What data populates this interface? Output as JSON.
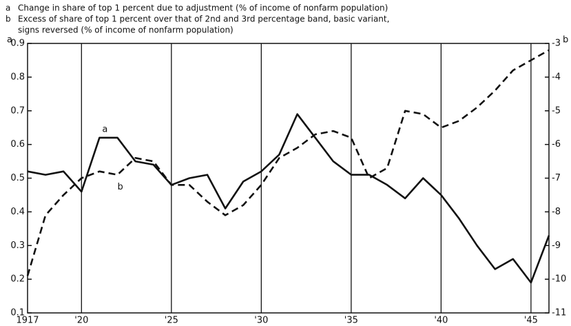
{
  "chart_data": {
    "type": "line",
    "series": [
      {
        "name": "a",
        "description": [
          "Change in share of top 1 percent due to adjustment (% of income of nonfarm population)"
        ],
        "color": "#111111",
        "dash": false,
        "values": [
          0.52,
          0.51,
          0.52,
          0.46,
          0.62,
          0.62,
          0.55,
          0.54,
          0.48,
          0.5,
          0.51,
          0.41,
          0.49,
          0.52,
          0.57,
          0.69,
          0.62,
          0.55,
          0.51,
          0.51,
          0.48,
          0.44,
          0.5,
          0.45,
          0.38,
          0.3,
          0.23,
          0.26,
          0.19,
          0.33
        ]
      },
      {
        "name": "b",
        "description": [
          "Excess of share of top 1 percent over that of 2nd and 3rd percentage band, basic variant,",
          "signs reversed (% of income of nonfarm population)"
        ],
        "color": "#111111",
        "dash": true,
        "axis": "y2",
        "values": [
          -9.9,
          -8.1,
          -7.5,
          -7.0,
          -6.8,
          -6.9,
          -6.4,
          -6.5,
          -7.2,
          -7.2,
          -7.7,
          -8.1,
          -7.8,
          -7.2,
          -6.4,
          -6.1,
          -5.7,
          -5.6,
          -5.8,
          -7.0,
          -6.7,
          -5.0,
          -5.1,
          -5.5,
          -5.3,
          -4.9,
          -4.4,
          -3.8,
          -3.5,
          -3.2
        ]
      }
    ],
    "x": [
      1917,
      1918,
      1919,
      1920,
      1921,
      1922,
      1923,
      1924,
      1925,
      1926,
      1927,
      1928,
      1929,
      1930,
      1931,
      1932,
      1933,
      1934,
      1935,
      1936,
      1937,
      1938,
      1939,
      1940,
      1941,
      1942,
      1943,
      1944,
      1945,
      1946
    ],
    "y_label": "a",
    "y2_label": "b",
    "xlim": [
      1917,
      1946
    ],
    "xticks": [
      {
        "value": 1917,
        "label": "1917"
      },
      {
        "value": 1920,
        "label": "'20"
      },
      {
        "value": 1925,
        "label": "'25"
      },
      {
        "value": 1930,
        "label": "'30"
      },
      {
        "value": 1935,
        "label": "'35"
      },
      {
        "value": 1940,
        "label": "'40"
      },
      {
        "value": 1945,
        "label": "'45"
      }
    ],
    "ylim": [
      0.1,
      0.9
    ],
    "yticks": [
      0.1,
      0.2,
      0.3,
      0.4,
      0.5,
      0.6,
      0.7,
      0.8,
      0.9
    ],
    "y2lim": [
      -11,
      -3
    ],
    "y2ticks": [
      -3,
      -4,
      -5,
      -6,
      -7,
      -8,
      -9,
      -10,
      -11
    ],
    "vertical_grid": true
  }
}
